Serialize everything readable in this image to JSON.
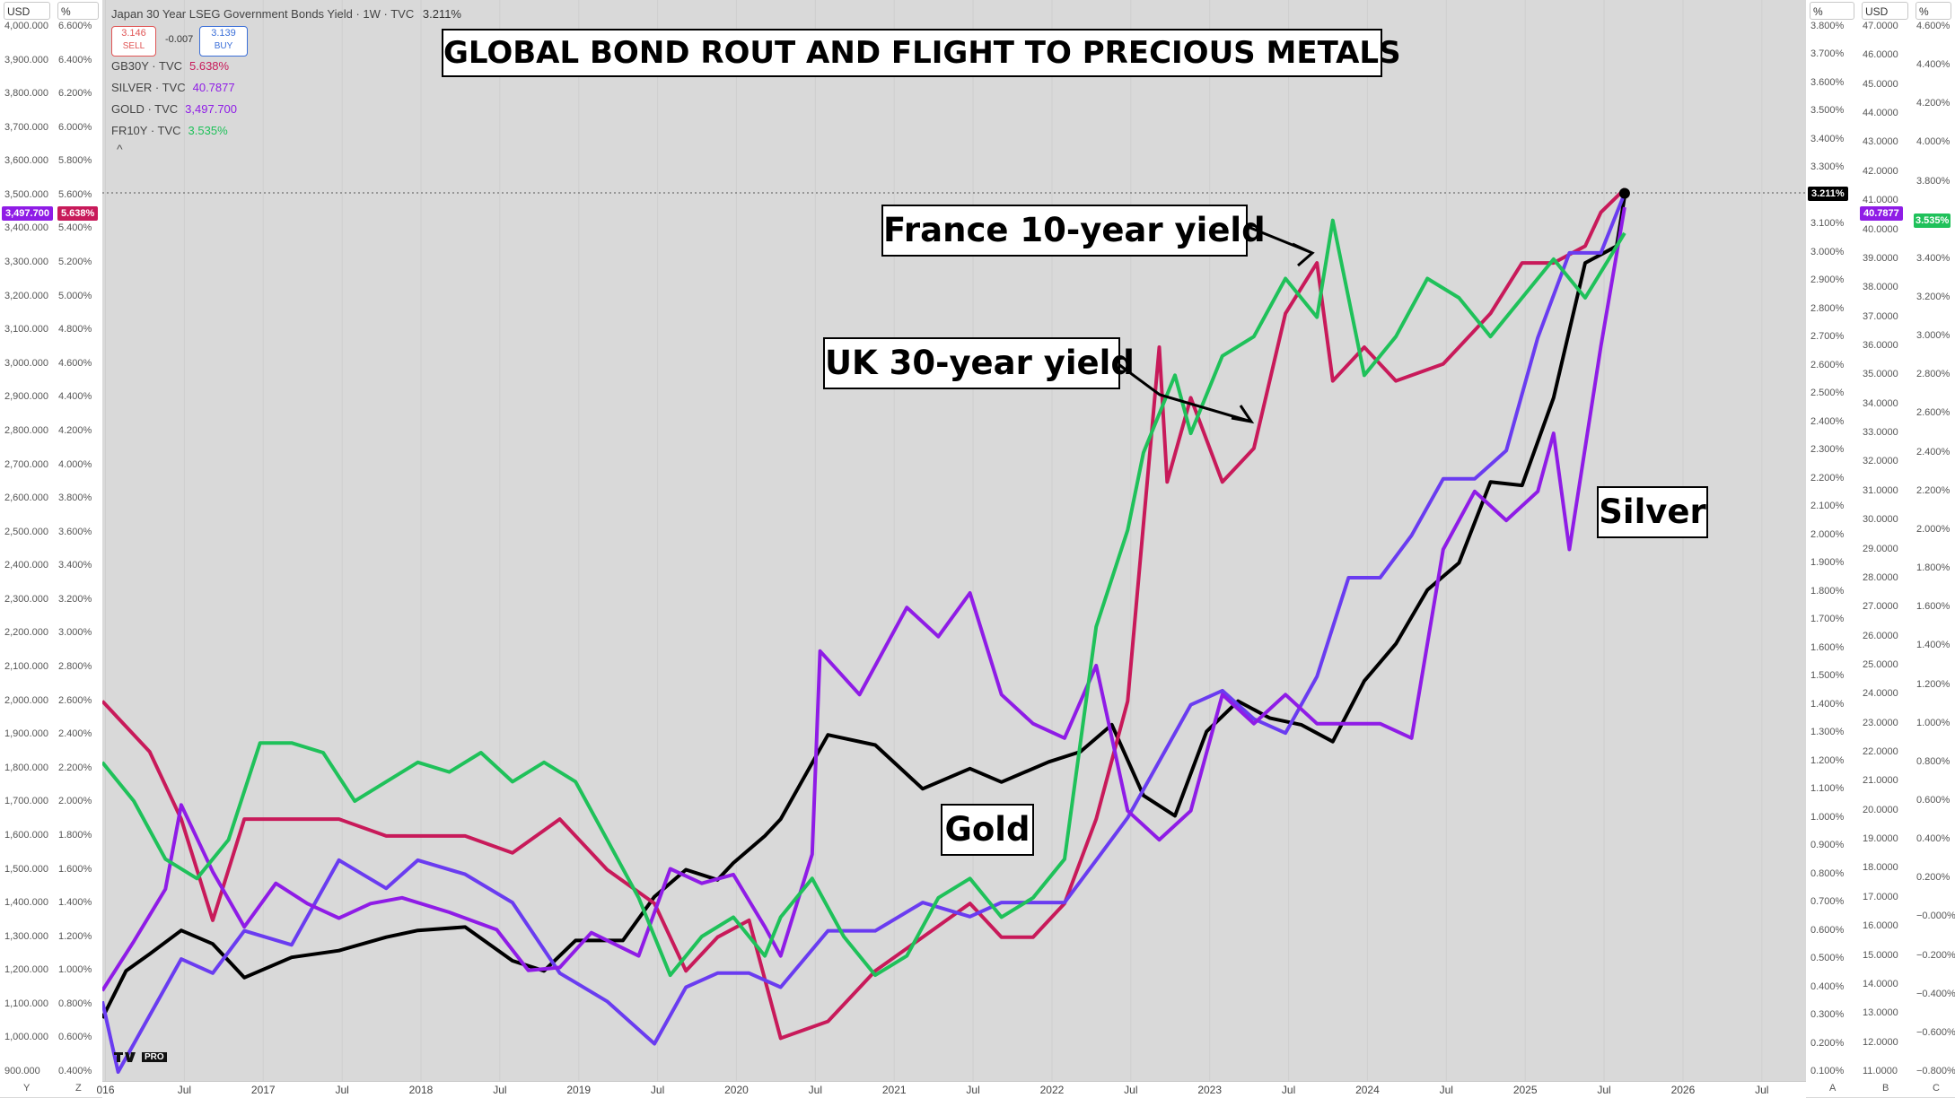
{
  "colors": {
    "gold": "#000000",
    "silver": "#8f1ce6",
    "france": "#1fc15a",
    "uk": "#c81a5a",
    "japan": "#6a3cf0"
  },
  "top_bar": {
    "main_label": "Japan 30 Year LSEG Government Bonds Yield · 1W · TVC",
    "main_value": "3.211%",
    "sell_price": "3.146",
    "sell_label": "SELL",
    "spread": "-0.007",
    "buy_price": "3.139",
    "buy_label": "BUY"
  },
  "legend": [
    {
      "symbol": "GB30Y · TVC",
      "value": "5.638%",
      "color": "#c81a5a"
    },
    {
      "symbol": "SILVER · TVC",
      "value": "40.7877",
      "color": "#8f1ce6"
    },
    {
      "symbol": "GOLD · TVC",
      "value": "3,497.700",
      "color": "#8f1ce6"
    },
    {
      "symbol": "FR10Y · TVC",
      "value": "3.535%",
      "color": "#1fc15a"
    }
  ],
  "collapse_glyph": "^",
  "axis_heads": {
    "gold": "USD",
    "uk": "%",
    "japan": "%",
    "silver": "USD",
    "france": "%"
  },
  "bottom_corners": {
    "left1": "Y",
    "left2": "Z",
    "right1": "A",
    "right2": "B",
    "right3": "C"
  },
  "badges": {
    "gold": "3,497.700",
    "uk": "5.638%",
    "japan": "3.211%",
    "silver": "40.7877",
    "france": "3.535%"
  },
  "annotations": {
    "title": "GLOBAL BOND ROUT AND FLIGHT TO PRECIOUS METALS",
    "france": "France 10-year yield",
    "uk": "UK 30-year yield",
    "gold": "Gold",
    "silver": "Silver"
  },
  "logo": "PRO",
  "chart_data": {
    "type": "line",
    "title": "GLOBAL BOND ROUT AND FLIGHT TO PRECIOUS METALS",
    "x_ticks": [
      "016",
      "Jul",
      "2017",
      "Jul",
      "2018",
      "Jul",
      "2019",
      "Jul",
      "2020",
      "Jul",
      "2021",
      "Jul",
      "2022",
      "Jul",
      "2023",
      "Jul",
      "2024",
      "Jul",
      "2025",
      "Jul",
      "2026",
      "Jul"
    ],
    "axes": {
      "gold_usd": {
        "ticks": [
          "4,000.000",
          "3,900.000",
          "3,800.000",
          "3,700.000",
          "3,600.000",
          "3,500.000",
          "3,400.000",
          "3,300.000",
          "3,200.000",
          "3,100.000",
          "3,000.000",
          "2,900.000",
          "2,800.000",
          "2,700.000",
          "2,600.000",
          "2,500.000",
          "2,400.000",
          "2,300.000",
          "2,200.000",
          "2,100.000",
          "2,000.000",
          "1,900.000",
          "1,800.000",
          "1,700.000",
          "1,600.000",
          "1,500.000",
          "1,400.000",
          "1,300.000",
          "1,200.000",
          "1,100.000",
          "1,000.000",
          "900.000"
        ],
        "range": [
          900,
          4000
        ]
      },
      "uk_pct": {
        "ticks": [
          "6.600%",
          "6.400%",
          "6.200%",
          "6.000%",
          "5.800%",
          "5.600%",
          "5.400%",
          "5.200%",
          "5.000%",
          "4.800%",
          "4.600%",
          "4.400%",
          "4.200%",
          "4.000%",
          "3.800%",
          "3.600%",
          "3.400%",
          "3.200%",
          "3.000%",
          "2.800%",
          "2.600%",
          "2.400%",
          "2.200%",
          "2.000%",
          "1.800%",
          "1.600%",
          "1.400%",
          "1.200%",
          "1.000%",
          "0.800%",
          "0.600%",
          "0.400%"
        ],
        "range": [
          0.4,
          6.6
        ]
      },
      "japan_pct": {
        "ticks": [
          "3.800%",
          "3.700%",
          "3.600%",
          "3.500%",
          "3.400%",
          "3.300%",
          "3.200%",
          "3.100%",
          "3.000%",
          "2.900%",
          "2.800%",
          "2.700%",
          "2.600%",
          "2.500%",
          "2.400%",
          "2.300%",
          "2.200%",
          "2.100%",
          "2.000%",
          "1.900%",
          "1.800%",
          "1.700%",
          "1.600%",
          "1.500%",
          "1.400%",
          "1.300%",
          "1.200%",
          "1.100%",
          "1.000%",
          "0.900%",
          "0.800%",
          "0.700%",
          "0.600%",
          "0.500%",
          "0.400%",
          "0.300%",
          "0.200%",
          "0.100%"
        ],
        "range": [
          0.1,
          3.8
        ]
      },
      "silver_usd": {
        "ticks": [
          "47.0000",
          "46.0000",
          "45.0000",
          "44.0000",
          "43.0000",
          "42.0000",
          "41.0000",
          "40.0000",
          "39.0000",
          "38.0000",
          "37.0000",
          "36.0000",
          "35.0000",
          "34.0000",
          "33.0000",
          "32.0000",
          "31.0000",
          "30.0000",
          "29.0000",
          "28.0000",
          "27.0000",
          "26.0000",
          "25.0000",
          "24.0000",
          "23.0000",
          "22.0000",
          "21.0000",
          "20.0000",
          "19.0000",
          "18.0000",
          "17.0000",
          "16.0000",
          "15.0000",
          "14.0000",
          "13.0000",
          "12.0000",
          "11.0000"
        ],
        "range": [
          11,
          47
        ]
      },
      "france_pct": {
        "ticks": [
          "4.600%",
          "4.400%",
          "4.200%",
          "4.000%",
          "3.800%",
          "3.600%",
          "3.400%",
          "3.200%",
          "3.000%",
          "2.800%",
          "2.600%",
          "2.400%",
          "2.200%",
          "2.000%",
          "1.800%",
          "1.600%",
          "1.400%",
          "1.200%",
          "1.000%",
          "0.800%",
          "0.600%",
          "0.400%",
          "0.200%",
          "−0.000%",
          "−0.200%",
          "−0.400%",
          "−0.600%",
          "−0.800%"
        ],
        "range": [
          -0.8,
          4.6
        ]
      }
    },
    "series": [
      {
        "name": "GOLD · TVC",
        "color": "#000000",
        "axis": "gold_usd",
        "x": [
          2016.0,
          2016.15,
          2016.3,
          2016.5,
          2016.7,
          2016.9,
          2017.2,
          2017.5,
          2017.8,
          2018.0,
          2018.3,
          2018.6,
          2018.8,
          2019.0,
          2019.3,
          2019.5,
          2019.7,
          2019.9,
          2020.0,
          2020.2,
          2020.3,
          2020.6,
          2020.9,
          2021.2,
          2021.5,
          2021.7,
          2022.0,
          2022.2,
          2022.4,
          2022.6,
          2022.8,
          2023.0,
          2023.2,
          2023.4,
          2023.6,
          2023.8,
          2024.0,
          2024.2,
          2024.4,
          2024.6,
          2024.8,
          2025.0,
          2025.2,
          2025.4,
          2025.6,
          2025.65
        ],
        "y": [
          1060,
          1200,
          1250,
          1320,
          1280,
          1180,
          1240,
          1260,
          1300,
          1320,
          1330,
          1230,
          1200,
          1290,
          1290,
          1420,
          1500,
          1470,
          1520,
          1600,
          1650,
          1900,
          1870,
          1740,
          1800,
          1760,
          1820,
          1850,
          1930,
          1720,
          1660,
          1910,
          2000,
          1950,
          1930,
          1880,
          2060,
          2170,
          2330,
          2410,
          2650,
          2640,
          2900,
          3300,
          3350,
          3497.7
        ]
      },
      {
        "name": "GB30Y · TVC",
        "color": "#c81a5a",
        "axis": "uk_pct",
        "x": [
          2016.0,
          2016.3,
          2016.5,
          2016.7,
          2016.9,
          2017.2,
          2017.5,
          2017.8,
          2018.0,
          2018.3,
          2018.6,
          2018.9,
          2019.2,
          2019.5,
          2019.7,
          2019.9,
          2020.1,
          2020.3,
          2020.6,
          2020.9,
          2021.2,
          2021.5,
          2021.7,
          2021.9,
          2022.1,
          2022.3,
          2022.5,
          2022.7,
          2022.75,
          2022.9,
          2023.1,
          2023.3,
          2023.5,
          2023.7,
          2023.8,
          2024.0,
          2024.2,
          2024.5,
          2024.8,
          2025.0,
          2025.2,
          2025.4,
          2025.5,
          2025.65
        ],
        "y": [
          2.6,
          2.3,
          1.9,
          1.3,
          1.9,
          1.9,
          1.9,
          1.8,
          1.8,
          1.8,
          1.7,
          1.9,
          1.6,
          1.4,
          1.0,
          1.2,
          1.3,
          0.6,
          0.7,
          1.0,
          1.2,
          1.4,
          1.2,
          1.2,
          1.4,
          1.9,
          2.6,
          4.7,
          3.9,
          4.4,
          3.9,
          4.1,
          4.9,
          5.2,
          4.5,
          4.7,
          4.5,
          4.6,
          4.9,
          5.2,
          5.2,
          5.3,
          5.5,
          5.638
        ]
      },
      {
        "name": "Japan 30 Year LSEG Government Bonds Yield",
        "color": "#6a3cf0",
        "axis": "japan_pct",
        "x": [
          2016.0,
          2016.1,
          2016.3,
          2016.5,
          2016.7,
          2016.9,
          2017.2,
          2017.5,
          2017.8,
          2018.0,
          2018.3,
          2018.6,
          2018.9,
          2019.2,
          2019.5,
          2019.7,
          2019.9,
          2020.1,
          2020.3,
          2020.6,
          2020.9,
          2021.2,
          2021.5,
          2021.7,
          2021.9,
          2022.1,
          2022.3,
          2022.5,
          2022.7,
          2022.9,
          2023.1,
          2023.3,
          2023.5,
          2023.7,
          2023.9,
          2024.1,
          2024.3,
          2024.5,
          2024.7,
          2024.9,
          2025.1,
          2025.3,
          2025.5,
          2025.65
        ],
        "y": [
          0.35,
          0.1,
          0.3,
          0.5,
          0.45,
          0.6,
          0.55,
          0.85,
          0.75,
          0.85,
          0.8,
          0.7,
          0.45,
          0.35,
          0.2,
          0.4,
          0.45,
          0.45,
          0.4,
          0.6,
          0.6,
          0.7,
          0.65,
          0.7,
          0.7,
          0.7,
          0.85,
          1.0,
          1.2,
          1.4,
          1.45,
          1.35,
          1.3,
          1.5,
          1.85,
          1.85,
          2.0,
          2.2,
          2.2,
          2.3,
          2.7,
          3.0,
          3.0,
          3.211
        ]
      },
      {
        "name": "SILVER · TVC",
        "color": "#8f1ce6",
        "axis": "silver_usd",
        "x": [
          2016.0,
          2016.2,
          2016.4,
          2016.5,
          2016.7,
          2016.9,
          2017.1,
          2017.3,
          2017.5,
          2017.7,
          2017.9,
          2018.2,
          2018.5,
          2018.7,
          2018.9,
          2019.1,
          2019.4,
          2019.6,
          2019.8,
          2020.0,
          2020.2,
          2020.3,
          2020.5,
          2020.55,
          2020.8,
          2021.1,
          2021.3,
          2021.5,
          2021.7,
          2021.9,
          2022.1,
          2022.3,
          2022.5,
          2022.7,
          2022.9,
          2023.1,
          2023.3,
          2023.5,
          2023.7,
          2023.9,
          2024.1,
          2024.3,
          2024.5,
          2024.7,
          2024.9,
          2025.1,
          2025.2,
          2025.3,
          2025.5,
          2025.65
        ],
        "y": [
          13.8,
          15.5,
          17.3,
          20.2,
          17.9,
          16.0,
          17.5,
          16.8,
          16.3,
          16.8,
          17.0,
          16.5,
          15.9,
          14.5,
          14.6,
          15.8,
          15.0,
          18.0,
          17.5,
          17.8,
          16.0,
          15.0,
          18.5,
          25.5,
          24.0,
          27.0,
          26.0,
          27.5,
          24.0,
          23.0,
          22.5,
          25.0,
          20.0,
          19.0,
          20.0,
          24.0,
          23.0,
          24.0,
          23.0,
          23.0,
          23.0,
          22.5,
          29.0,
          31.0,
          30.0,
          31.0,
          33.0,
          29.0,
          36.0,
          40.7877
        ]
      },
      {
        "name": "FR10Y · TVC",
        "color": "#1fc15a",
        "axis": "france_pct",
        "x": [
          2016.0,
          2016.2,
          2016.4,
          2016.6,
          2016.8,
          2017.0,
          2017.2,
          2017.4,
          2017.6,
          2017.8,
          2018.0,
          2018.2,
          2018.4,
          2018.6,
          2018.8,
          2019.0,
          2019.2,
          2019.4,
          2019.6,
          2019.8,
          2020.0,
          2020.2,
          2020.3,
          2020.5,
          2020.7,
          2020.9,
          2021.1,
          2021.3,
          2021.5,
          2021.7,
          2021.9,
          2022.1,
          2022.3,
          2022.5,
          2022.6,
          2022.8,
          2022.9,
          2023.1,
          2023.3,
          2023.5,
          2023.7,
          2023.8,
          2024.0,
          2024.2,
          2024.4,
          2024.6,
          2024.8,
          2025.0,
          2025.2,
          2025.4,
          2025.55,
          2025.65
        ],
        "y": [
          0.8,
          0.6,
          0.3,
          0.2,
          0.4,
          0.9,
          0.9,
          0.85,
          0.6,
          0.7,
          0.8,
          0.75,
          0.85,
          0.7,
          0.8,
          0.7,
          0.4,
          0.1,
          -0.3,
          -0.1,
          0.0,
          -0.2,
          0.0,
          0.2,
          -0.1,
          -0.3,
          -0.2,
          0.1,
          0.2,
          0.0,
          0.1,
          0.3,
          1.5,
          2.0,
          2.4,
          2.8,
          2.5,
          2.9,
          3.0,
          3.3,
          3.1,
          3.6,
          2.8,
          3.0,
          3.3,
          3.2,
          3.0,
          3.2,
          3.4,
          3.2,
          3.4,
          3.535
        ]
      }
    ]
  }
}
